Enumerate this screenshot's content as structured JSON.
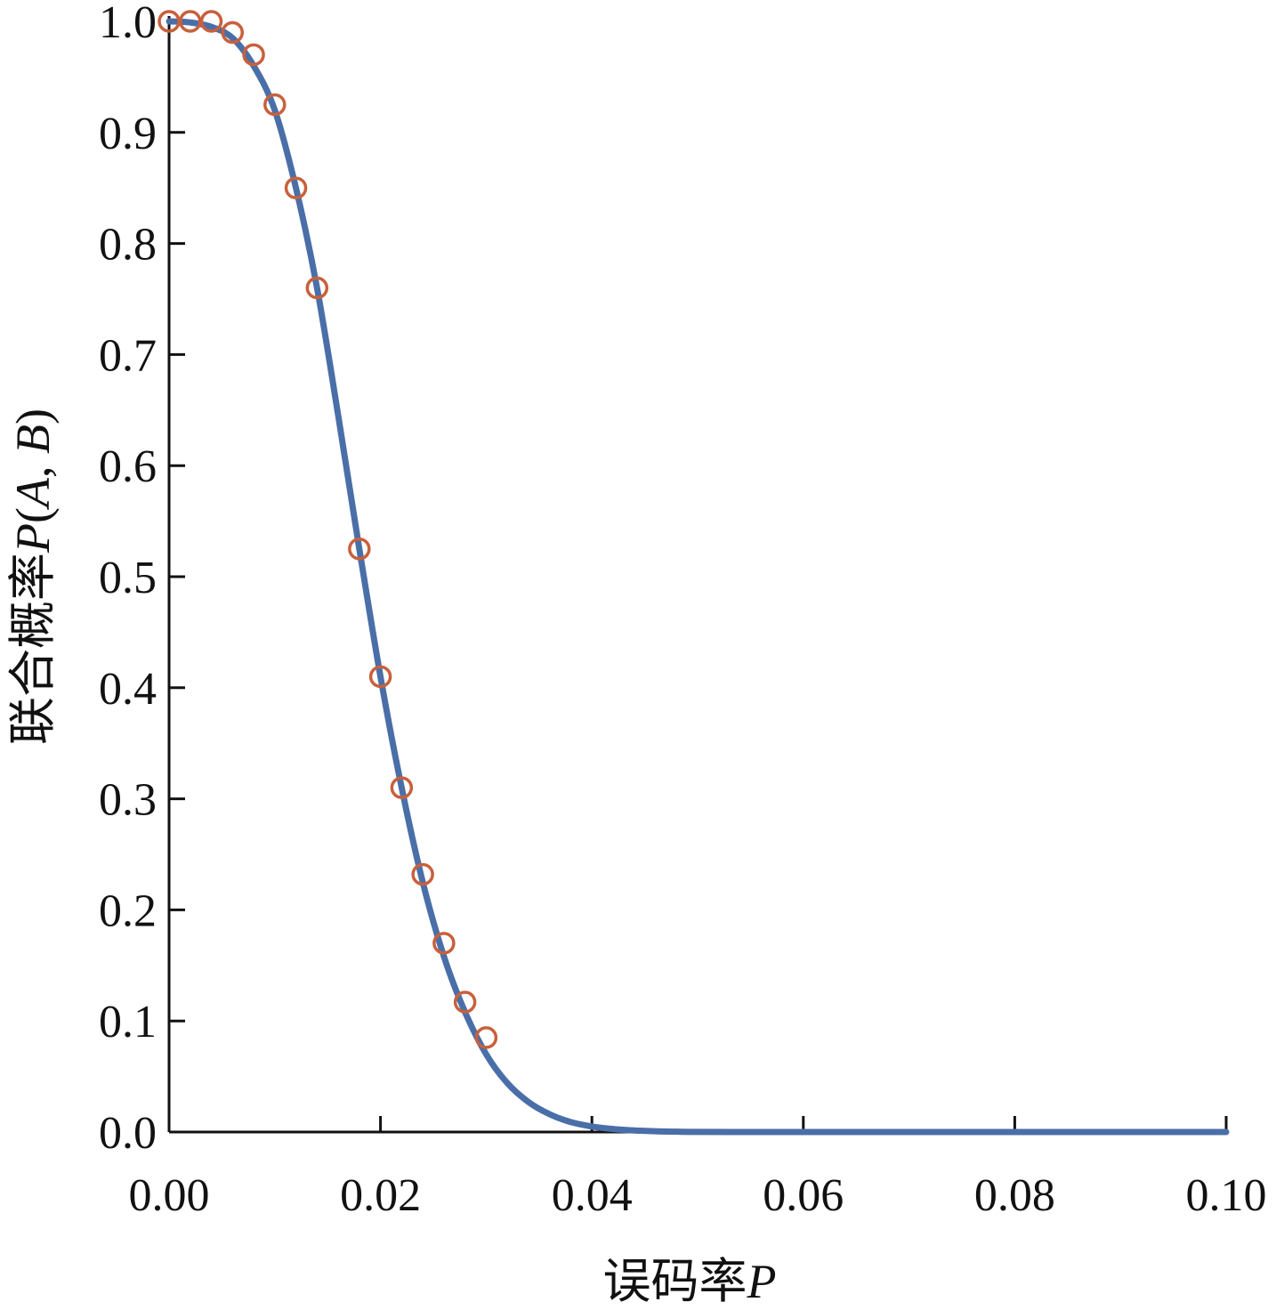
{
  "chart_data": {
    "type": "line",
    "xlabel": "误码率",
    "xlabel_var": "P",
    "ylabel_cn": "联合概率",
    "ylabel_func": "P",
    "ylabel_open": "(",
    "ylabel_a": "A",
    "ylabel_sep": ", ",
    "ylabel_b": "B",
    "ylabel_close": ")",
    "xlim": [
      0,
      0.1
    ],
    "ylim": [
      0,
      1.0
    ],
    "xticks": [
      "0.00",
      "0.02",
      "0.04",
      "0.06",
      "0.08",
      "0.10"
    ],
    "yticks": [
      "0.0",
      "0.1",
      "0.2",
      "0.3",
      "0.4",
      "0.5",
      "0.6",
      "0.7",
      "0.8",
      "0.9",
      "1.0"
    ],
    "grid": false,
    "series": [
      {
        "style": "line",
        "color": "#4a6fa8",
        "x": [
          0,
          0.002,
          0.004,
          0.006,
          0.008,
          0.01,
          0.012,
          0.014,
          0.016,
          0.018,
          0.02,
          0.022,
          0.024,
          0.026,
          0.028,
          0.03,
          0.032,
          0.034,
          0.036,
          0.038,
          0.04,
          0.042,
          0.044,
          0.046,
          0.048,
          0.05,
          0.055,
          0.06,
          0.07,
          0.08,
          0.09,
          0.1
        ],
        "y": [
          1.0,
          0.999,
          0.995,
          0.985,
          0.96,
          0.92,
          0.85,
          0.76,
          0.645,
          0.525,
          0.41,
          0.31,
          0.225,
          0.158,
          0.108,
          0.07,
          0.044,
          0.027,
          0.016,
          0.009,
          0.005,
          0.0027,
          0.0014,
          0.0007,
          0.0003,
          0.0001,
          2e-05,
          0.0,
          0.0,
          0.0,
          0.0,
          0.0
        ]
      },
      {
        "style": "scatter",
        "marker": "circle-open",
        "color": "#c8603c",
        "x": [
          0.0,
          0.002,
          0.004,
          0.006,
          0.008,
          0.01,
          0.012,
          0.014,
          0.018,
          0.02,
          0.022,
          0.024,
          0.026,
          0.028,
          0.03
        ],
        "y": [
          1.0,
          1.0,
          1.0,
          0.99,
          0.97,
          0.925,
          0.85,
          0.76,
          0.525,
          0.41,
          0.31,
          0.232,
          0.17,
          0.117,
          0.085
        ]
      }
    ]
  }
}
